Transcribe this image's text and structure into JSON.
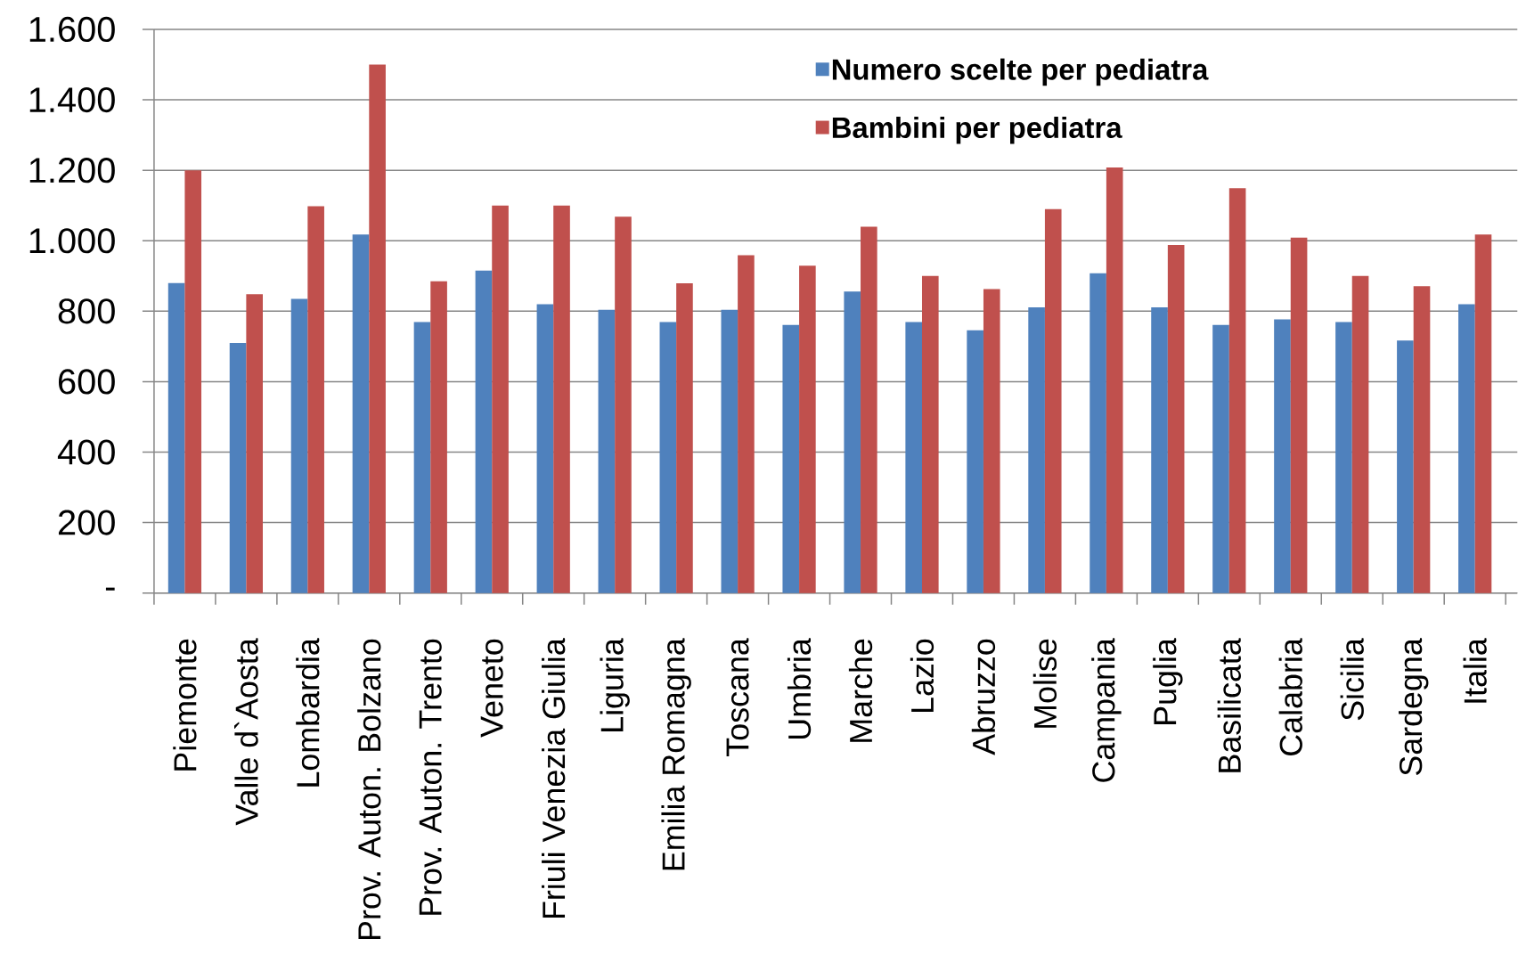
{
  "chart_data": {
    "type": "bar",
    "categories": [
      "Piemonte",
      "Valle d`Aosta",
      "Lombardia",
      "Prov. Auton. Bolzano",
      "Prov. Auton. Trento",
      "Veneto",
      "Friuli Venezia Giulia",
      "Liguria",
      "Emilia Romagna",
      "Toscana",
      "Umbria",
      "Marche",
      "Lazio",
      "Abruzzo",
      "Molise",
      "Campania",
      "Puglia",
      "Basilicata",
      "Calabria",
      "Sicilia",
      "Sardegna",
      "Italia"
    ],
    "series": [
      {
        "name": "Numero scelte per pediatra",
        "color": "#4f81bd",
        "values": [
          880,
          710,
          835,
          1018,
          769,
          915,
          820,
          804,
          769,
          804,
          761,
          856,
          769,
          746,
          811,
          908,
          811,
          761,
          777,
          769,
          717,
          820
        ]
      },
      {
        "name": "Bambini per pediatra",
        "color": "#c0504d",
        "values": [
          1200,
          848,
          1098,
          1500,
          885,
          1100,
          1100,
          1068,
          879,
          959,
          929,
          1040,
          900,
          863,
          1090,
          1208,
          988,
          1149,
          1009,
          900,
          871,
          1018
        ]
      }
    ],
    "ylim": [
      0,
      1600
    ],
    "yticks": [
      {
        "value": 0,
        "label": "-"
      },
      200,
      400,
      600,
      800,
      {
        "value": 1000,
        "label": "1.000"
      },
      {
        "value": 1200,
        "label": "1.200"
      },
      {
        "value": 1400,
        "label": "1.400"
      },
      {
        "value": 1600,
        "label": "1.600"
      }
    ],
    "grid": "y",
    "legend": "top"
  }
}
